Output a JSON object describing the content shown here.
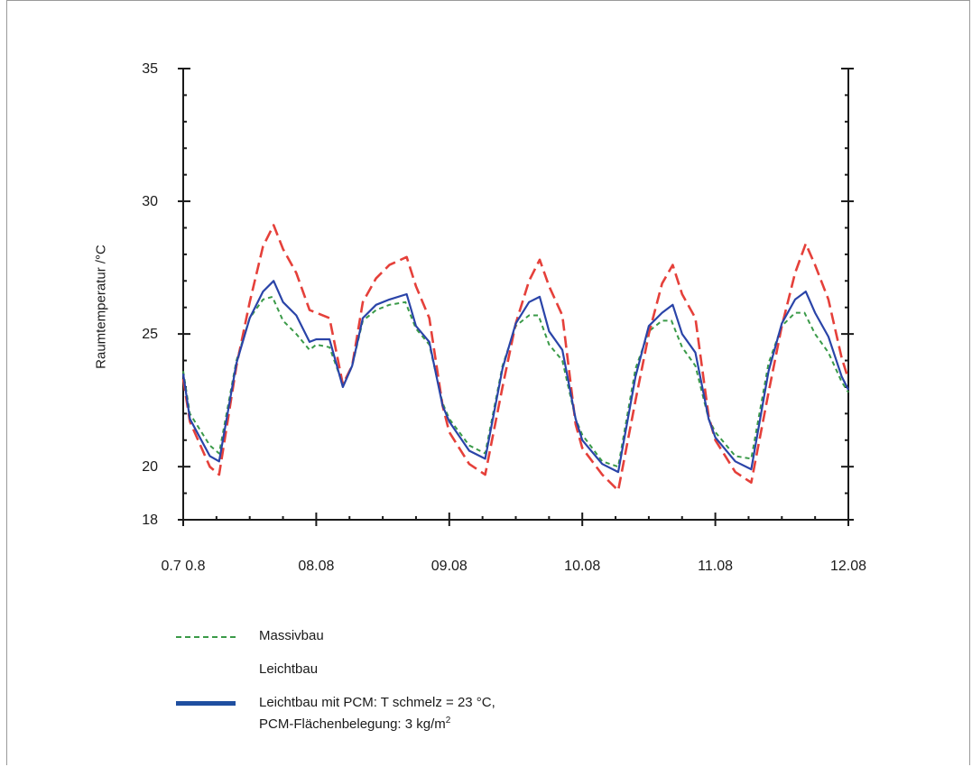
{
  "chart_data": {
    "type": "line",
    "ylabel": "Raumtemperatur /°C",
    "xlabel": "",
    "title": "",
    "ylim": [
      18,
      35
    ],
    "xlim": [
      0,
      5
    ],
    "yticks": [
      18,
      20,
      25,
      30,
      35
    ],
    "xticks": [
      {
        "value": 0,
        "label": "0.7 0.8"
      },
      {
        "value": 1,
        "label": "08.08"
      },
      {
        "value": 2,
        "label": "09.08"
      },
      {
        "value": 3,
        "label": "10.08"
      },
      {
        "value": 4,
        "label": "11.08"
      },
      {
        "value": 5,
        "label": "12.08"
      }
    ],
    "grid": false,
    "legend_position": "bottom",
    "series": [
      {
        "name": "Massivbau",
        "color": "#3a9a48",
        "style": "dotted",
        "x": [
          0,
          0.05,
          0.2,
          0.27,
          0.4,
          0.5,
          0.6,
          0.67,
          0.75,
          0.85,
          0.95,
          1.0,
          1.1,
          1.2,
          1.27,
          1.35,
          1.45,
          1.55,
          1.67,
          1.75,
          1.85,
          1.95,
          2.0,
          2.15,
          2.27,
          2.4,
          2.5,
          2.6,
          2.67,
          2.75,
          2.85,
          2.95,
          3.0,
          3.15,
          3.27,
          3.4,
          3.5,
          3.6,
          3.67,
          3.75,
          3.85,
          3.95,
          4.0,
          4.15,
          4.27,
          4.4,
          4.5,
          4.6,
          4.67,
          4.75,
          4.85,
          4.95,
          5.0
        ],
        "y": [
          23.6,
          22.0,
          20.8,
          20.5,
          24.0,
          25.6,
          26.3,
          26.4,
          25.5,
          25.0,
          24.4,
          24.6,
          24.5,
          23.1,
          23.8,
          25.5,
          25.9,
          26.1,
          26.2,
          25.2,
          24.6,
          22.4,
          21.8,
          20.8,
          20.5,
          23.8,
          25.3,
          25.7,
          25.7,
          24.6,
          24.0,
          21.8,
          21.2,
          20.2,
          20.0,
          23.7,
          25.1,
          25.5,
          25.5,
          24.5,
          23.8,
          21.8,
          21.3,
          20.4,
          20.3,
          23.9,
          25.3,
          25.8,
          25.8,
          25.0,
          24.3,
          23.2,
          22.8
        ]
      },
      {
        "name": "Leichtbau",
        "color": "#e5403a",
        "style": "dashed",
        "x": [
          0,
          0.05,
          0.2,
          0.27,
          0.4,
          0.5,
          0.6,
          0.68,
          0.75,
          0.85,
          0.95,
          1.0,
          1.1,
          1.2,
          1.27,
          1.35,
          1.45,
          1.55,
          1.68,
          1.75,
          1.85,
          1.95,
          2.0,
          2.15,
          2.27,
          2.4,
          2.5,
          2.6,
          2.68,
          2.75,
          2.85,
          2.95,
          3.0,
          3.15,
          3.27,
          3.4,
          3.5,
          3.6,
          3.68,
          3.75,
          3.85,
          3.95,
          4.0,
          4.15,
          4.27,
          4.4,
          4.5,
          4.6,
          4.68,
          4.75,
          4.85,
          4.95,
          5.0
        ],
        "y": [
          23.3,
          21.7,
          20.0,
          19.7,
          23.8,
          26.2,
          28.3,
          29.1,
          28.2,
          27.3,
          25.9,
          25.8,
          25.6,
          23.1,
          23.8,
          26.2,
          27.1,
          27.6,
          27.9,
          26.8,
          25.6,
          22.3,
          21.3,
          20.1,
          19.7,
          23.0,
          25.4,
          27.0,
          27.8,
          26.8,
          25.7,
          21.6,
          20.7,
          19.7,
          19.1,
          22.5,
          25.0,
          26.9,
          27.6,
          26.5,
          25.6,
          21.9,
          21.0,
          19.8,
          19.4,
          22.8,
          25.3,
          27.3,
          28.4,
          27.6,
          26.3,
          24.1,
          23.3
        ]
      },
      {
        "name": "Leichtbau mit PCM: T schmelz = 23 °C, PCM-Flächenbelegung: 3 kg/m²",
        "color": "#2a44a8",
        "style": "solid",
        "x": [
          0,
          0.05,
          0.2,
          0.27,
          0.4,
          0.5,
          0.6,
          0.68,
          0.75,
          0.85,
          0.95,
          1.0,
          1.1,
          1.2,
          1.27,
          1.35,
          1.45,
          1.55,
          1.68,
          1.75,
          1.85,
          1.95,
          2.0,
          2.15,
          2.27,
          2.4,
          2.5,
          2.6,
          2.68,
          2.75,
          2.85,
          2.95,
          3.0,
          3.15,
          3.27,
          3.4,
          3.5,
          3.6,
          3.68,
          3.75,
          3.85,
          3.95,
          4.0,
          4.15,
          4.27,
          4.4,
          4.5,
          4.6,
          4.68,
          4.75,
          4.85,
          4.95,
          5.0
        ],
        "y": [
          23.5,
          21.8,
          20.4,
          20.2,
          23.9,
          25.6,
          26.6,
          27.0,
          26.2,
          25.7,
          24.7,
          24.8,
          24.8,
          23.0,
          23.8,
          25.6,
          26.1,
          26.3,
          26.5,
          25.3,
          24.7,
          22.3,
          21.7,
          20.6,
          20.3,
          23.7,
          25.4,
          26.2,
          26.4,
          25.1,
          24.4,
          21.8,
          21.0,
          20.1,
          19.8,
          23.4,
          25.3,
          25.8,
          26.1,
          25.0,
          24.3,
          21.8,
          21.1,
          20.2,
          19.9,
          23.6,
          25.4,
          26.3,
          26.6,
          25.8,
          24.9,
          23.4,
          22.9
        ]
      }
    ]
  },
  "legend": {
    "items": [
      {
        "line1": "Massivbau",
        "line2": "",
        "color": "#3a9a48",
        "style": "dotted"
      },
      {
        "line1": "Leichtbau",
        "line2": "",
        "color": "#e5403a",
        "style": "dashed"
      },
      {
        "line1": "Leichtbau mit PCM: T schmelz = 23 °C,",
        "line2": "PCM-Flächenbelegung: 3 kg/m",
        "line2_sup": "2",
        "color": "#1f4fa0",
        "style": "solid"
      }
    ]
  }
}
